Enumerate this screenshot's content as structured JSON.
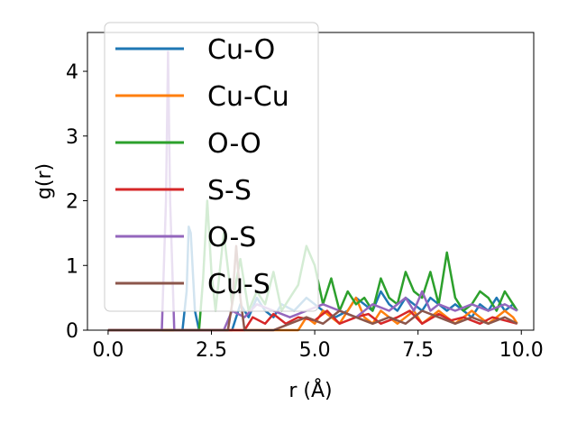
{
  "chart_data": {
    "type": "line",
    "xlabel": "r (Å)",
    "ylabel": "g(r)",
    "xlim": [
      -0.5,
      10.3
    ],
    "ylim": [
      0,
      4.6
    ],
    "xticks": [
      0.0,
      2.5,
      5.0,
      7.5,
      10.0
    ],
    "xtick_labels": [
      "0.0",
      "2.5",
      "5.0",
      "7.5",
      "10.0"
    ],
    "yticks": [
      0,
      1,
      2,
      3,
      4
    ],
    "ytick_labels": [
      "0",
      "1",
      "2",
      "3",
      "4"
    ],
    "grid": false,
    "legend_position": "upper-left",
    "series": [
      {
        "name": "Cu-O",
        "color": "#1f77b4",
        "x": [
          0,
          1.8,
          1.9,
          1.95,
          2.0,
          2.1,
          2.2,
          3.0,
          3.2,
          3.4,
          3.6,
          3.8,
          4.0,
          4.2,
          4.5,
          4.8,
          5.0,
          5.2,
          5.5,
          5.8,
          6.0,
          6.2,
          6.4,
          6.6,
          6.8,
          7.0,
          7.2,
          7.4,
          7.6,
          7.8,
          8.0,
          8.2,
          8.4,
          8.6,
          8.8,
          9.0,
          9.2,
          9.4,
          9.6,
          9.8,
          9.9
        ],
        "y": [
          0,
          0,
          0.6,
          1.6,
          1.5,
          0.3,
          0,
          0,
          0.4,
          0.2,
          0.5,
          0.3,
          0.2,
          0.4,
          0.3,
          0.5,
          0.4,
          0.3,
          0.2,
          0.3,
          0.5,
          0.4,
          0.3,
          0.6,
          0.4,
          0.3,
          0.5,
          0.4,
          0.3,
          0.5,
          0.4,
          0.3,
          0.4,
          0.3,
          0.2,
          0.4,
          0.3,
          0.5,
          0.3,
          0.4,
          0.3
        ]
      },
      {
        "name": "Cu-Cu",
        "color": "#ff7f0e",
        "x": [
          0,
          4.6,
          4.8,
          5.0,
          5.2,
          5.4,
          5.6,
          5.8,
          6.0,
          6.2,
          6.4,
          6.6,
          6.8,
          7.0,
          7.2,
          7.4,
          7.6,
          7.8,
          8.0,
          8.2,
          8.4,
          8.6,
          8.8,
          9.0,
          9.2,
          9.4,
          9.6,
          9.8,
          9.9
        ],
        "y": [
          0,
          0,
          0.2,
          0.1,
          0.3,
          0.2,
          0.1,
          0.3,
          0.5,
          0.2,
          0.1,
          0.3,
          0.2,
          0.1,
          0.2,
          0.3,
          0.1,
          0.2,
          0.3,
          0.2,
          0.1,
          0.2,
          0.3,
          0.2,
          0.1,
          0.2,
          0.3,
          0.2,
          0.1
        ]
      },
      {
        "name": "O-O",
        "color": "#2ca02c",
        "x": [
          0,
          2.2,
          2.3,
          2.4,
          2.5,
          2.6,
          2.8,
          3.0,
          3.2,
          3.4,
          3.6,
          3.8,
          4.0,
          4.2,
          4.4,
          4.6,
          4.8,
          5.0,
          5.2,
          5.4,
          5.6,
          5.8,
          6.0,
          6.2,
          6.4,
          6.6,
          6.8,
          7.0,
          7.2,
          7.4,
          7.6,
          7.8,
          8.0,
          8.2,
          8.4,
          8.6,
          8.8,
          9.0,
          9.2,
          9.4,
          9.6,
          9.8,
          9.9
        ],
        "y": [
          0,
          0,
          0.8,
          2.0,
          0.9,
          0.3,
          1.5,
          0.4,
          1.1,
          0.3,
          0.6,
          0.4,
          0.9,
          0.3,
          0.5,
          0.7,
          1.3,
          1.0,
          0.4,
          0.8,
          0.3,
          0.6,
          0.4,
          0.5,
          0.3,
          0.8,
          0.5,
          0.4,
          0.9,
          0.6,
          0.5,
          0.9,
          0.4,
          1.2,
          0.5,
          0.3,
          0.4,
          0.6,
          0.5,
          0.3,
          0.6,
          0.4,
          0.3
        ]
      },
      {
        "name": "S-S",
        "color": "#d62728",
        "x": [
          0,
          3.3,
          3.5,
          3.8,
          4.0,
          4.3,
          4.6,
          5.0,
          5.3,
          5.6,
          6.0,
          6.3,
          6.6,
          7.0,
          7.3,
          7.6,
          8.0,
          8.3,
          8.6,
          9.0,
          9.3,
          9.6,
          9.9
        ],
        "y": [
          0,
          0,
          0.2,
          0.1,
          0.25,
          0.1,
          0.2,
          0.15,
          0.3,
          0.1,
          0.2,
          0.25,
          0.1,
          0.2,
          0.3,
          0.1,
          0.25,
          0.15,
          0.2,
          0.1,
          0.2,
          0.15,
          0.1
        ]
      },
      {
        "name": "O-S",
        "color": "#9467bd",
        "x": [
          0,
          1.3,
          1.4,
          1.45,
          1.5,
          1.6,
          2.8,
          3.0,
          3.3,
          3.6,
          4.0,
          4.4,
          4.8,
          5.2,
          5.6,
          6.0,
          6.4,
          6.8,
          7.2,
          7.4,
          7.6,
          7.8,
          8.0,
          8.4,
          8.8,
          9.2,
          9.6,
          9.9
        ],
        "y": [
          0,
          0,
          2.0,
          4.3,
          2.0,
          0,
          0,
          0.3,
          0.2,
          0.4,
          0.3,
          0.2,
          0.3,
          0.4,
          0.3,
          0.2,
          0.4,
          0.3,
          0.5,
          0.3,
          0.6,
          0.3,
          0.4,
          0.3,
          0.4,
          0.3,
          0.4,
          0.3
        ]
      },
      {
        "name": "Cu-S",
        "color": "#8c564b",
        "x": [
          0,
          2.9,
          3.0,
          3.1,
          3.2,
          3.3,
          4.0,
          4.4,
          4.8,
          5.2,
          5.6,
          6.0,
          6.4,
          6.8,
          7.2,
          7.6,
          8.0,
          8.4,
          8.8,
          9.2,
          9.6,
          9.9
        ],
        "y": [
          0,
          0,
          0.4,
          1.3,
          0.5,
          0,
          0,
          0.1,
          0.2,
          0.1,
          0.3,
          0.2,
          0.1,
          0.2,
          0.1,
          0.3,
          0.2,
          0.1,
          0.2,
          0.1,
          0.2,
          0.1
        ]
      }
    ]
  }
}
